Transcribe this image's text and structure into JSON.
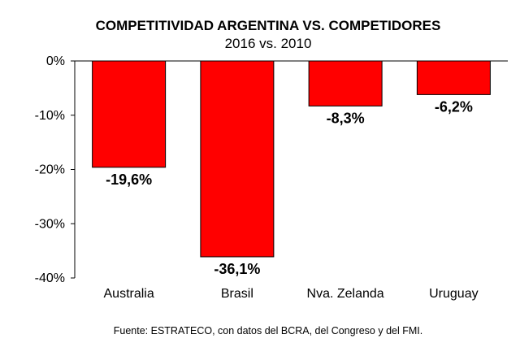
{
  "chart_data": {
    "type": "bar",
    "title": "COMPETITIVIDAD ARGENTINA VS. COMPETIDORES",
    "subtitle": "2016 vs. 2010",
    "categories": [
      "Australia",
      "Brasil",
      "Nva. Zelanda",
      "Uruguay"
    ],
    "values": [
      -19.6,
      -36.1,
      -8.3,
      -6.2
    ],
    "data_labels": [
      "-19,6%",
      "-36,1%",
      "-8,3%",
      "-6,2%"
    ],
    "yticks": [
      0,
      -10,
      -20,
      -30,
      -40
    ],
    "ytick_labels": [
      "0%",
      "-10%",
      "-20%",
      "-30%",
      "-40%"
    ],
    "ylim": [
      -40,
      0
    ],
    "grid": false,
    "legend": "none",
    "bar_color": "#ff0000",
    "source": "Fuente: ESTRATECO, con datos del BCRA, del Congreso y del FMI."
  }
}
